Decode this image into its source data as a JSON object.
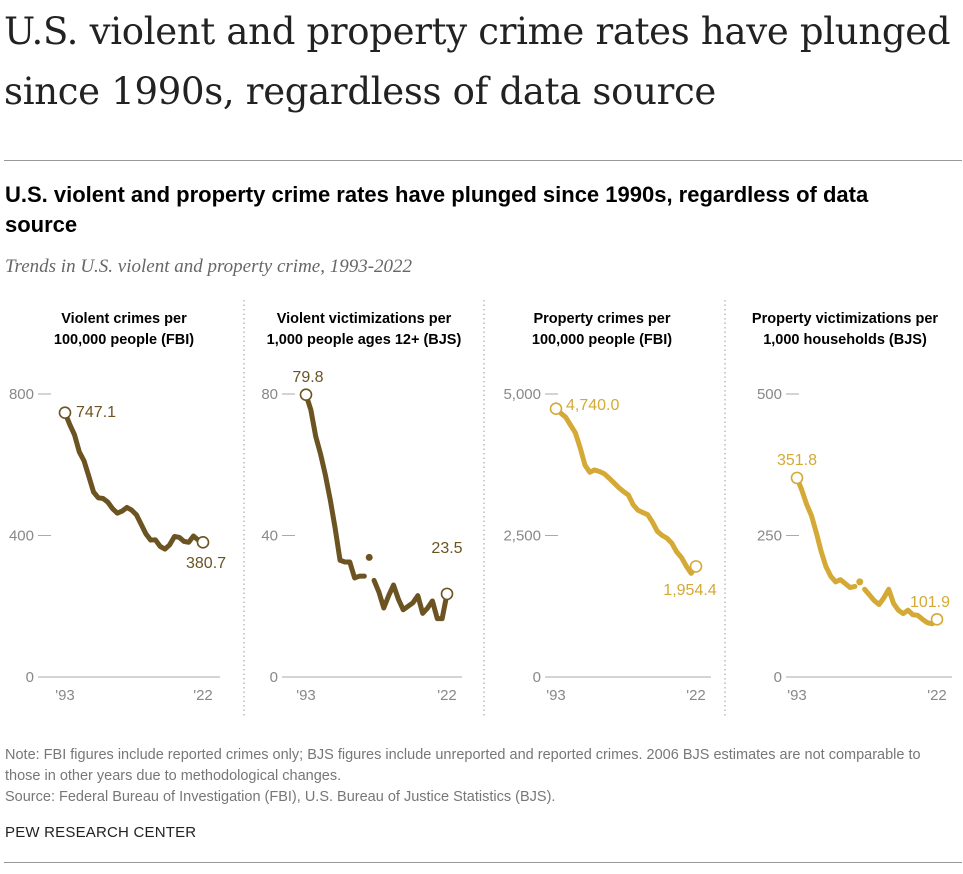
{
  "headline": "U.S. violent and property crime rates have plunged since 1990s, regardless of data source",
  "chart_title": "U.S. violent and property crime rates have plunged since 1990s, regardless of data source",
  "subtitle": "Trends in U.S. violent and property crime, 1993-2022",
  "notes": {
    "note": "Note: FBI figures include reported crimes only; BJS figures include unreported and reported crimes. 2006 BJS estimates are not comparable to those in other years due to methodological changes.",
    "source": "Source: Federal Bureau of Investigation (FBI), U.S. Bureau of Justice Statistics (BJS)."
  },
  "brand": "PEW RESEARCH CENTER",
  "colors": {
    "violent": "#6b5422",
    "property": "#d4a935",
    "axis": "#999999",
    "tick_text": "#888888"
  },
  "chart_data": [
    {
      "type": "line",
      "title": "Violent crimes per 100,000 people (FBI)",
      "title_lines": [
        "Violent crimes per",
        "100,000 people (FBI)"
      ],
      "x": [
        1993,
        1994,
        1995,
        1996,
        1997,
        1998,
        1999,
        2000,
        2001,
        2002,
        2003,
        2004,
        2005,
        2006,
        2007,
        2008,
        2009,
        2010,
        2011,
        2012,
        2013,
        2014,
        2015,
        2016,
        2017,
        2018,
        2019,
        2020,
        2021,
        2022
      ],
      "values": [
        747.1,
        713.6,
        684.5,
        636.6,
        611.0,
        567.6,
        523.0,
        506.5,
        504.5,
        494.4,
        475.8,
        463.2,
        469.0,
        479.3,
        471.8,
        458.6,
        431.9,
        404.5,
        387.1,
        387.8,
        369.1,
        361.6,
        373.7,
        397.1,
        394.9,
        383.4,
        380.8,
        398.5,
        387.0,
        380.7
      ],
      "ylim": [
        0,
        800
      ],
      "yticks": [
        "0",
        "400",
        "800"
      ],
      "ytick_values": [
        0,
        400,
        800
      ],
      "xticks": [
        "'93",
        "'22"
      ],
      "labels": {
        "start": "747.1",
        "end": "380.7"
      },
      "series_color": "violent"
    },
    {
      "type": "line",
      "title": "Violent victimizations per 1,000 people ages 12+ (BJS)",
      "title_lines": [
        "Violent victimizations per",
        "1,000 people ages 12+ (BJS)"
      ],
      "x": [
        1993,
        1994,
        1995,
        1996,
        1997,
        1998,
        1999,
        2000,
        2001,
        2002,
        2003,
        2004,
        2005,
        2006,
        2007,
        2008,
        2009,
        2010,
        2011,
        2012,
        2013,
        2014,
        2015,
        2016,
        2017,
        2018,
        2019,
        2020,
        2021,
        2022
      ],
      "values": [
        79.8,
        75.5,
        68.0,
        63.0,
        57.0,
        50.0,
        42.0,
        33.0,
        32.5,
        32.5,
        28.0,
        28.5,
        28.5,
        33.8,
        27.3,
        24.0,
        19.5,
        23.0,
        26.0,
        22.0,
        19.0,
        20.0,
        21.0,
        23.0,
        18.0,
        19.5,
        21.5,
        16.5,
        16.5,
        23.5
      ],
      "breaks": [
        2006
      ],
      "ylim": [
        0,
        80
      ],
      "yticks": [
        "0",
        "40",
        "80"
      ],
      "ytick_values": [
        0,
        40,
        80
      ],
      "xticks": [
        "'93",
        "'22"
      ],
      "labels": {
        "start": "79.8",
        "end": "23.5"
      },
      "series_color": "violent"
    },
    {
      "type": "line",
      "title": "Property crimes per 100,000 people (FBI)",
      "title_lines": [
        "Property crimes per",
        "100,000 people (FBI)"
      ],
      "x": [
        1993,
        1994,
        1995,
        1996,
        1997,
        1998,
        1999,
        2000,
        2001,
        2002,
        2003,
        2004,
        2005,
        2006,
        2007,
        2008,
        2009,
        2010,
        2011,
        2012,
        2013,
        2014,
        2015,
        2016,
        2017,
        2018,
        2019,
        2020,
        2021,
        2022
      ],
      "values": [
        4740.0,
        4660.2,
        4590.5,
        4451.0,
        4316.3,
        4052.5,
        3743.6,
        3618.3,
        3658.1,
        3630.6,
        3591.2,
        3514.1,
        3431.5,
        3346.6,
        3276.4,
        3214.6,
        3041.3,
        2945.9,
        2905.4,
        2868.0,
        2733.6,
        2574.1,
        2500.5,
        2451.6,
        2362.2,
        2209.8,
        2109.9,
        1958.2,
        1832.3,
        1954.4
      ],
      "ylim": [
        0,
        5000
      ],
      "yticks": [
        "0",
        "2,500",
        "5,000"
      ],
      "ytick_values": [
        0,
        2500,
        5000
      ],
      "xticks": [
        "'93",
        "'22"
      ],
      "labels": {
        "start": "4,740.0",
        "end": "1,954.4"
      },
      "series_color": "property"
    },
    {
      "type": "line",
      "title": "Property victimizations per 1,000 households (BJS)",
      "title_lines": [
        "Property victimizations per",
        "1,000 households (BJS)"
      ],
      "x": [
        1993,
        1994,
        1995,
        1996,
        1997,
        1998,
        1999,
        2000,
        2001,
        2002,
        2003,
        2004,
        2005,
        2006,
        2007,
        2008,
        2009,
        2010,
        2011,
        2012,
        2013,
        2014,
        2015,
        2016,
        2017,
        2018,
        2019,
        2020,
        2021,
        2022
      ],
      "values": [
        351.8,
        330.0,
        305.0,
        285.0,
        255.0,
        222.0,
        195.0,
        178.0,
        168.0,
        172.0,
        165.0,
        158.0,
        160.0,
        168.0,
        155.0,
        145.0,
        135.0,
        128.0,
        140.0,
        155.0,
        130.0,
        118.0,
        112.0,
        118.0,
        110.0,
        109.0,
        102.0,
        96.0,
        94.0,
        101.9
      ],
      "breaks": [
        2006
      ],
      "ylim": [
        0,
        500
      ],
      "yticks": [
        "0",
        "250",
        "500"
      ],
      "ytick_values": [
        0,
        250,
        500
      ],
      "xticks": [
        "'93",
        "'22"
      ],
      "labels": {
        "start": "351.8",
        "end": "101.9"
      },
      "series_color": "property"
    }
  ]
}
